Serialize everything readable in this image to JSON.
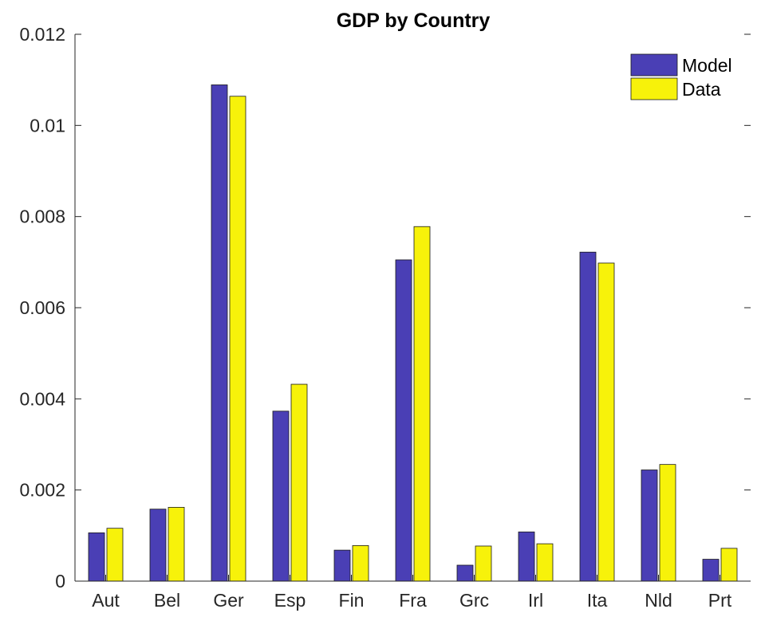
{
  "chart_data": {
    "type": "bar",
    "title": "GDP by Country",
    "xlabel": "",
    "ylabel": "",
    "categories": [
      "Aut",
      "Bel",
      "Ger",
      "Esp",
      "Fin",
      "Fra",
      "Grc",
      "Irl",
      "Ita",
      "Nld",
      "Prt"
    ],
    "series": [
      {
        "name": "Model",
        "color": "#4a3fb5",
        "values": [
          0.00106,
          0.00158,
          0.01089,
          0.00373,
          0.00068,
          0.00705,
          0.00035,
          0.00108,
          0.00722,
          0.00244,
          0.00048
        ]
      },
      {
        "name": "Data",
        "color": "#f7f20a",
        "values": [
          0.00116,
          0.00162,
          0.01064,
          0.00432,
          0.00078,
          0.00778,
          0.00077,
          0.00082,
          0.00698,
          0.00256,
          0.00072
        ]
      }
    ],
    "ylim": [
      0,
      0.012
    ],
    "yticks": [
      "0",
      "0.002",
      "0.004",
      "0.006",
      "0.008",
      "0.01",
      "0.012"
    ],
    "grid": false,
    "legend_position": "top-right"
  }
}
